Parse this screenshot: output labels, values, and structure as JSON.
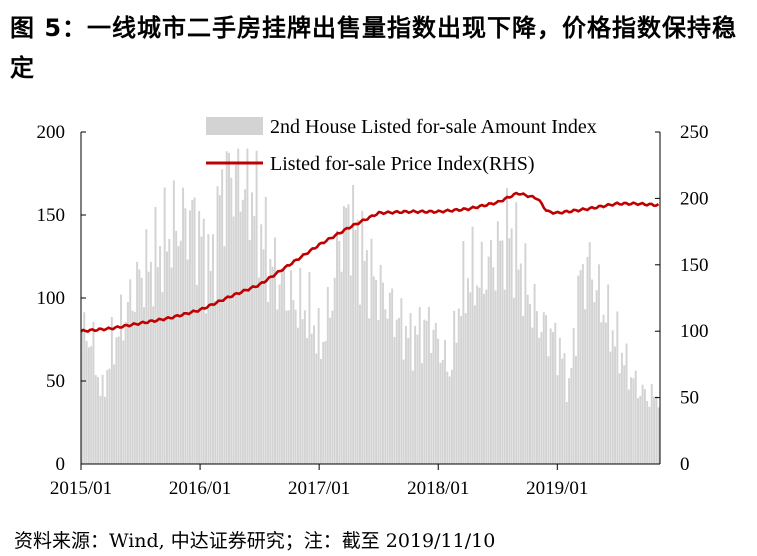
{
  "title": "图 5：一线城市二手房挂牌出售量指数出现下降，价格指数保持稳定",
  "source": "资料来源：Wind, 中达证券研究；注：截至 2019/11/10",
  "colors": {
    "bars": "#d3d3d3",
    "line": "#c00000",
    "axis": "#000000"
  },
  "chart_data": {
    "type": "bar+line",
    "legend_position": "top",
    "grid": false,
    "x": {
      "tick_labels": [
        "2015/01",
        "2016/01",
        "2017/01",
        "2018/01",
        "2019/01"
      ],
      "range": [
        "2015/01",
        "2019/11"
      ]
    },
    "y_left": {
      "ylim": [
        0,
        200
      ],
      "ticks": [
        "0",
        "50",
        "100",
        "150",
        "200"
      ]
    },
    "y_right": {
      "ylim": [
        0,
        250
      ],
      "ticks": [
        "0",
        "50",
        "100",
        "150",
        "200",
        "250"
      ]
    },
    "series": [
      {
        "name": "2nd House Listed for-sale Amount Index",
        "type": "bar",
        "axis": "left",
        "frequency": "weekly",
        "keypoints": [
          [
            "2015/01",
            80
          ],
          [
            "2015/02",
            75
          ],
          [
            "2015/03",
            40
          ],
          [
            "2015/04",
            70
          ],
          [
            "2015/05",
            85
          ],
          [
            "2015/06",
            100
          ],
          [
            "2015/07",
            115
          ],
          [
            "2015/08",
            120
          ],
          [
            "2015/09",
            130
          ],
          [
            "2015/10",
            140
          ],
          [
            "2015/11",
            145
          ],
          [
            "2015/12",
            150
          ],
          [
            "2016/01",
            135
          ],
          [
            "2016/02",
            115
          ],
          [
            "2016/03",
            165
          ],
          [
            "2016/04",
            175
          ],
          [
            "2016/05",
            170
          ],
          [
            "2016/06",
            165
          ],
          [
            "2016/07",
            140
          ],
          [
            "2016/08",
            120
          ],
          [
            "2016/09",
            110
          ],
          [
            "2016/10",
            100
          ],
          [
            "2016/11",
            95
          ],
          [
            "2016/12",
            90
          ],
          [
            "2017/01",
            70
          ],
          [
            "2017/02",
            95
          ],
          [
            "2017/03",
            140
          ],
          [
            "2017/04",
            150
          ],
          [
            "2017/05",
            130
          ],
          [
            "2017/06",
            115
          ],
          [
            "2017/07",
            105
          ],
          [
            "2017/08",
            95
          ],
          [
            "2017/09",
            85
          ],
          [
            "2017/10",
            75
          ],
          [
            "2017/11",
            80
          ],
          [
            "2017/12",
            85
          ],
          [
            "2018/01",
            70
          ],
          [
            "2018/02",
            55
          ],
          [
            "2018/03",
            100
          ],
          [
            "2018/04",
            115
          ],
          [
            "2018/05",
            110
          ],
          [
            "2018/06",
            120
          ],
          [
            "2018/07",
            130
          ],
          [
            "2018/08",
            140
          ],
          [
            "2018/09",
            120
          ],
          [
            "2018/10",
            100
          ],
          [
            "2018/11",
            85
          ],
          [
            "2018/12",
            80
          ],
          [
            "2019/01",
            70
          ],
          [
            "2019/02",
            45
          ],
          [
            "2019/03",
            110
          ],
          [
            "2019/04",
            120
          ],
          [
            "2019/05",
            100
          ],
          [
            "2019/06",
            85
          ],
          [
            "2019/07",
            70
          ],
          [
            "2019/08",
            55
          ],
          [
            "2019/09",
            45
          ],
          [
            "2019/10",
            40
          ],
          [
            "2019/11",
            42
          ]
        ]
      },
      {
        "name": "Listed for-sale Price Index(RHS)",
        "type": "line",
        "axis": "right",
        "keypoints": [
          [
            "2015/01",
            100
          ],
          [
            "2015/04",
            102
          ],
          [
            "2015/07",
            106
          ],
          [
            "2015/10",
            110
          ],
          [
            "2016/01",
            116
          ],
          [
            "2016/04",
            126
          ],
          [
            "2016/07",
            135
          ],
          [
            "2016/10",
            150
          ],
          [
            "2017/01",
            165
          ],
          [
            "2017/04",
            178
          ],
          [
            "2017/07",
            189
          ],
          [
            "2017/10",
            190
          ],
          [
            "2018/01",
            190
          ],
          [
            "2018/04",
            192
          ],
          [
            "2018/07",
            197
          ],
          [
            "2018/09",
            204
          ],
          [
            "2018/11",
            200
          ],
          [
            "2018/12",
            190
          ],
          [
            "2019/01",
            189
          ],
          [
            "2019/04",
            192
          ],
          [
            "2019/07",
            196
          ],
          [
            "2019/09",
            196
          ],
          [
            "2019/11",
            195
          ]
        ]
      }
    ]
  }
}
